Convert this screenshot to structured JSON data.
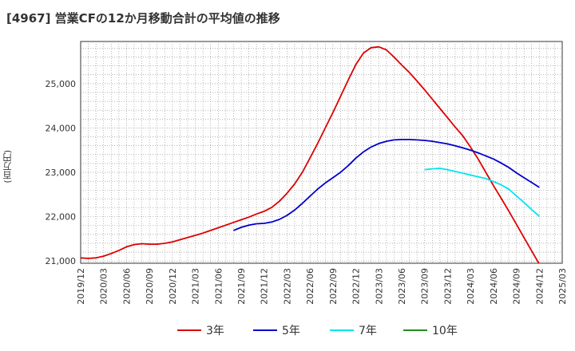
{
  "chart_data": {
    "type": "line",
    "title": "[4967]  営業CFの12か月移動合計の平均値の推移",
    "ylabel": "(百万円)",
    "xlabel": "",
    "x_ticks": [
      "2019/12",
      "2020/03",
      "2020/06",
      "2020/09",
      "2020/12",
      "2021/03",
      "2021/06",
      "2021/09",
      "2021/12",
      "2022/03",
      "2022/06",
      "2022/09",
      "2022/12",
      "2023/03",
      "2023/06",
      "2023/09",
      "2023/12",
      "2024/03",
      "2024/06",
      "2024/09",
      "2024/12",
      "2025/03"
    ],
    "y_ticks": [
      21000,
      22000,
      23000,
      24000,
      25000
    ],
    "y_tick_labels": [
      "21,000",
      "22,000",
      "23,000",
      "24,000",
      "25,000"
    ],
    "ylim": [
      20950,
      25950
    ],
    "grid": true,
    "legend_position": "bottom",
    "series": [
      {
        "name": "3年",
        "color": "#dd0000",
        "x": [
          "2019/12",
          "2020/01",
          "2020/02",
          "2020/03",
          "2020/04",
          "2020/05",
          "2020/06",
          "2020/07",
          "2020/08",
          "2020/09",
          "2020/10",
          "2020/11",
          "2020/12",
          "2021/01",
          "2021/02",
          "2021/03",
          "2021/04",
          "2021/05",
          "2021/06",
          "2021/07",
          "2021/08",
          "2021/09",
          "2021/10",
          "2021/11",
          "2021/12",
          "2022/01",
          "2022/02",
          "2022/03",
          "2022/04",
          "2022/05",
          "2022/06",
          "2022/07",
          "2022/08",
          "2022/09",
          "2022/10",
          "2022/11",
          "2022/12",
          "2023/01",
          "2023/02",
          "2023/03",
          "2023/04",
          "2023/05",
          "2023/06",
          "2023/07",
          "2023/08",
          "2023/09",
          "2023/10",
          "2023/11",
          "2023/12",
          "2024/01",
          "2024/02",
          "2024/03",
          "2024/04",
          "2024/05",
          "2024/06",
          "2024/07",
          "2024/08",
          "2024/09",
          "2024/10",
          "2024/11",
          "2024/12"
        ],
        "values": [
          21070,
          21060,
          21070,
          21110,
          21170,
          21240,
          21320,
          21370,
          21390,
          21380,
          21380,
          21400,
          21430,
          21480,
          21530,
          21580,
          21630,
          21690,
          21750,
          21810,
          21870,
          21930,
          21990,
          22060,
          22120,
          22210,
          22350,
          22530,
          22740,
          23000,
          23320,
          23650,
          24000,
          24350,
          24710,
          25080,
          25430,
          25690,
          25810,
          25830,
          25760,
          25600,
          25420,
          25250,
          25060,
          24860,
          24650,
          24440,
          24230,
          24020,
          23820,
          23570,
          23300,
          23000,
          22700,
          22420,
          22130,
          21830,
          21530,
          21230,
          20930
        ]
      },
      {
        "name": "5年",
        "color": "#0000cc",
        "x": [
          "2021/08",
          "2021/09",
          "2021/10",
          "2021/11",
          "2021/12",
          "2022/01",
          "2022/02",
          "2022/03",
          "2022/04",
          "2022/05",
          "2022/06",
          "2022/07",
          "2022/08",
          "2022/09",
          "2022/10",
          "2022/11",
          "2022/12",
          "2023/01",
          "2023/02",
          "2023/03",
          "2023/04",
          "2023/05",
          "2023/06",
          "2023/07",
          "2023/08",
          "2023/09",
          "2023/10",
          "2023/11",
          "2023/12",
          "2024/01",
          "2024/02",
          "2024/03",
          "2024/04",
          "2024/05",
          "2024/06",
          "2024/07",
          "2024/08",
          "2024/09",
          "2024/10",
          "2024/11",
          "2024/12"
        ],
        "values": [
          21690,
          21760,
          21810,
          21840,
          21850,
          21880,
          21940,
          22030,
          22150,
          22300,
          22460,
          22620,
          22760,
          22880,
          23000,
          23150,
          23320,
          23460,
          23570,
          23650,
          23700,
          23730,
          23740,
          23740,
          23730,
          23720,
          23700,
          23670,
          23640,
          23600,
          23550,
          23500,
          23440,
          23370,
          23300,
          23210,
          23110,
          22990,
          22880,
          22770,
          22660
        ]
      },
      {
        "name": "7年",
        "color": "#00e5ee",
        "x": [
          "2023/09",
          "2023/10",
          "2023/11",
          "2023/12",
          "2024/01",
          "2024/02",
          "2024/03",
          "2024/04",
          "2024/05",
          "2024/06",
          "2024/07",
          "2024/08",
          "2024/09",
          "2024/10",
          "2024/11",
          "2024/12"
        ],
        "values": [
          23060,
          23080,
          23090,
          23060,
          23020,
          22980,
          22940,
          22900,
          22860,
          22790,
          22720,
          22620,
          22470,
          22320,
          22160,
          22010
        ]
      },
      {
        "name": "10年",
        "color": "#228b22",
        "x": [],
        "values": []
      }
    ]
  }
}
